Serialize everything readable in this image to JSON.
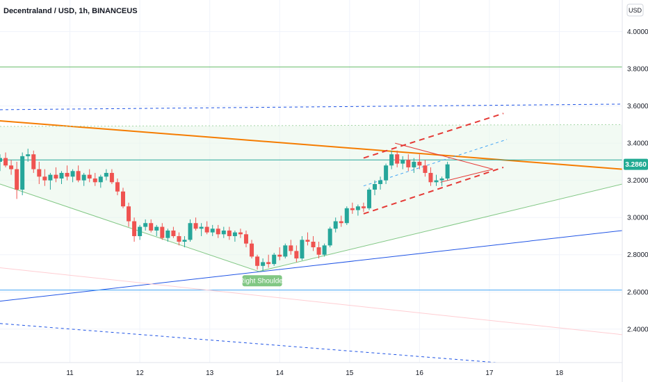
{
  "header": {
    "title": "Decentraland / USD, 1h, BINANCEUS",
    "currency_button": "USD"
  },
  "colors": {
    "up": "#26a69a",
    "down": "#ef5350",
    "orange": "#f57c00",
    "blue": "#1e53e5",
    "green": "#81c784",
    "red_dash": "#e53935",
    "price_tag": "#22ab94"
  },
  "chart_data": {
    "type": "candlestick",
    "title": "Decentraland / USD, 1h, BINANCEUS",
    "x_ticks": [
      "11",
      "12",
      "13",
      "14",
      "15",
      "16",
      "17",
      "18"
    ],
    "x_tick_dates": [
      11,
      12,
      13,
      14,
      15,
      16,
      17,
      18
    ],
    "y_ticks": [
      "4.0000",
      "3.8000",
      "3.6000",
      "3.4000",
      "3.2000",
      "3.0000",
      "2.8000",
      "2.6000",
      "2.4000"
    ],
    "y_tick_values": [
      4.0,
      3.8,
      3.6,
      3.4,
      3.2,
      3.0,
      2.8,
      2.6,
      2.4
    ],
    "ylim": [
      2.22,
      4.17
    ],
    "xlim": [
      10.0,
      18.9
    ],
    "last_price": "3.2860",
    "last_price_value": 3.286,
    "annotation": {
      "text": "Right Shoulder",
      "x": 13.75,
      "y": 2.66
    },
    "candles": [
      [
        10.0,
        3.3,
        3.34,
        3.25,
        3.32
      ],
      [
        10.08,
        3.32,
        3.35,
        3.27,
        3.28
      ],
      [
        10.16,
        3.28,
        3.31,
        3.23,
        3.26
      ],
      [
        10.24,
        3.26,
        3.3,
        3.1,
        3.15
      ],
      [
        10.32,
        3.15,
        3.35,
        3.12,
        3.33
      ],
      [
        10.4,
        3.33,
        3.37,
        3.3,
        3.34
      ],
      [
        10.48,
        3.34,
        3.36,
        3.24,
        3.26
      ],
      [
        10.56,
        3.26,
        3.3,
        3.18,
        3.22
      ],
      [
        10.64,
        3.22,
        3.26,
        3.17,
        3.2
      ],
      [
        10.72,
        3.2,
        3.24,
        3.15,
        3.23
      ],
      [
        10.8,
        3.23,
        3.27,
        3.19,
        3.21
      ],
      [
        10.88,
        3.21,
        3.25,
        3.18,
        3.24
      ],
      [
        10.96,
        3.24,
        3.28,
        3.2,
        3.22
      ],
      [
        11.04,
        3.22,
        3.26,
        3.19,
        3.25
      ],
      [
        11.12,
        3.25,
        3.28,
        3.19,
        3.2
      ],
      [
        11.2,
        3.2,
        3.24,
        3.17,
        3.23
      ],
      [
        11.28,
        3.23,
        3.26,
        3.19,
        3.21
      ],
      [
        11.36,
        3.21,
        3.24,
        3.17,
        3.19
      ],
      [
        11.44,
        3.19,
        3.23,
        3.16,
        3.22
      ],
      [
        11.52,
        3.22,
        3.26,
        3.2,
        3.24
      ],
      [
        11.6,
        3.24,
        3.26,
        3.18,
        3.19
      ],
      [
        11.68,
        3.19,
        3.21,
        3.12,
        3.14
      ],
      [
        11.76,
        3.14,
        3.16,
        3.05,
        3.06
      ],
      [
        11.84,
        3.06,
        3.08,
        2.95,
        2.98
      ],
      [
        11.92,
        2.98,
        3.0,
        2.87,
        2.9
      ],
      [
        12.0,
        2.9,
        2.96,
        2.88,
        2.95
      ],
      [
        12.08,
        2.95,
        2.99,
        2.93,
        2.97
      ],
      [
        12.16,
        2.97,
        2.99,
        2.92,
        2.93
      ],
      [
        12.24,
        2.93,
        2.96,
        2.9,
        2.95
      ],
      [
        12.32,
        2.95,
        2.97,
        2.88,
        2.89
      ],
      [
        12.4,
        2.89,
        2.94,
        2.87,
        2.93
      ],
      [
        12.48,
        2.93,
        2.95,
        2.89,
        2.9
      ],
      [
        12.56,
        2.9,
        2.92,
        2.85,
        2.87
      ],
      [
        12.64,
        2.87,
        2.9,
        2.84,
        2.88
      ],
      [
        12.72,
        2.88,
        2.99,
        2.87,
        2.97
      ],
      [
        12.8,
        2.97,
        3.0,
        2.93,
        2.94
      ],
      [
        12.88,
        2.94,
        2.97,
        2.9,
        2.95
      ],
      [
        12.96,
        2.95,
        2.98,
        2.91,
        2.92
      ],
      [
        13.04,
        2.92,
        2.96,
        2.9,
        2.94
      ],
      [
        13.12,
        2.94,
        2.96,
        2.89,
        2.91
      ],
      [
        13.2,
        2.91,
        2.95,
        2.89,
        2.93
      ],
      [
        13.28,
        2.93,
        2.95,
        2.88,
        2.9
      ],
      [
        13.36,
        2.9,
        2.93,
        2.87,
        2.92
      ],
      [
        13.44,
        2.92,
        2.94,
        2.89,
        2.91
      ],
      [
        13.52,
        2.91,
        2.93,
        2.84,
        2.86
      ],
      [
        13.6,
        2.86,
        2.88,
        2.78,
        2.79
      ],
      [
        13.68,
        2.79,
        2.8,
        2.72,
        2.74
      ],
      [
        13.76,
        2.74,
        2.78,
        2.71,
        2.76
      ],
      [
        13.84,
        2.76,
        2.8,
        2.73,
        2.75
      ],
      [
        13.92,
        2.75,
        2.81,
        2.74,
        2.8
      ],
      [
        14.0,
        2.8,
        2.84,
        2.77,
        2.79
      ],
      [
        14.08,
        2.79,
        2.86,
        2.78,
        2.85
      ],
      [
        14.16,
        2.85,
        2.88,
        2.8,
        2.82
      ],
      [
        14.24,
        2.82,
        2.85,
        2.76,
        2.78
      ],
      [
        14.32,
        2.78,
        2.9,
        2.77,
        2.88
      ],
      [
        14.4,
        2.88,
        2.92,
        2.85,
        2.87
      ],
      [
        14.48,
        2.87,
        2.9,
        2.82,
        2.84
      ],
      [
        14.56,
        2.84,
        2.87,
        2.78,
        2.8
      ],
      [
        14.64,
        2.8,
        2.86,
        2.79,
        2.85
      ],
      [
        14.72,
        2.85,
        2.95,
        2.84,
        2.94
      ],
      [
        14.8,
        2.94,
        3.0,
        2.92,
        2.98
      ],
      [
        14.88,
        2.98,
        3.01,
        2.95,
        2.97
      ],
      [
        14.96,
        2.97,
        3.06,
        2.96,
        3.05
      ],
      [
        15.04,
        3.05,
        3.08,
        3.02,
        3.04
      ],
      [
        15.12,
        3.04,
        3.07,
        3.01,
        3.06
      ],
      [
        15.2,
        3.06,
        3.08,
        3.03,
        3.05
      ],
      [
        15.28,
        3.05,
        3.16,
        3.04,
        3.15
      ],
      [
        15.36,
        3.15,
        3.2,
        3.12,
        3.18
      ],
      [
        15.44,
        3.18,
        3.22,
        3.15,
        3.2
      ],
      [
        15.52,
        3.2,
        3.29,
        3.18,
        3.28
      ],
      [
        15.6,
        3.28,
        3.36,
        3.26,
        3.34
      ],
      [
        15.68,
        3.34,
        3.36,
        3.27,
        3.29
      ],
      [
        15.76,
        3.29,
        3.33,
        3.26,
        3.31
      ],
      [
        15.84,
        3.31,
        3.34,
        3.25,
        3.27
      ],
      [
        15.92,
        3.27,
        3.32,
        3.24,
        3.3
      ],
      [
        16.0,
        3.3,
        3.34,
        3.26,
        3.28
      ],
      [
        16.08,
        3.28,
        3.31,
        3.22,
        3.24
      ],
      [
        16.16,
        3.24,
        3.27,
        3.17,
        3.19
      ],
      [
        16.24,
        3.19,
        3.23,
        3.17,
        3.2
      ],
      [
        16.32,
        3.2,
        3.22,
        3.17,
        3.21
      ],
      [
        16.4,
        3.21,
        3.3,
        3.2,
        3.286
      ]
    ],
    "overlays": [
      {
        "name": "descending-resistance-orange",
        "color": "#f57c00",
        "style": "solid",
        "x1": 10.0,
        "y1": 3.52,
        "x2": 18.9,
        "y2": 3.26
      },
      {
        "name": "ascending-support-blue",
        "color": "#1e53e5",
        "style": "solid",
        "x1": 10.0,
        "y1": 2.55,
        "x2": 18.9,
        "y2": 2.93
      },
      {
        "name": "neckline-green-left",
        "color": "#81c784",
        "style": "solid",
        "x1": 10.0,
        "y1": 3.18,
        "x2": 13.7,
        "y2": 2.71
      },
      {
        "name": "neckline-green-right",
        "color": "#81c784",
        "style": "solid",
        "x1": 13.7,
        "y1": 2.71,
        "x2": 18.9,
        "y2": 3.18
      },
      {
        "name": "horizontal-green-top",
        "color": "#66bb6a",
        "style": "solid",
        "x1": 10.0,
        "y1": 3.81,
        "x2": 18.9,
        "y2": 3.81
      },
      {
        "name": "horizontal-teal-mid",
        "color": "#26a69a",
        "style": "solid",
        "x1": 10.0,
        "y1": 3.31,
        "x2": 18.9,
        "y2": 3.31
      },
      {
        "name": "horizontal-blue-bottom",
        "color": "#42a5f5",
        "style": "solid",
        "x1": 10.0,
        "y1": 2.61,
        "x2": 18.9,
        "y2": 2.61
      },
      {
        "name": "blue-dashed-top",
        "color": "#1e53e5",
        "style": "dashed",
        "x1": 10.0,
        "y1": 3.58,
        "x2": 18.9,
        "y2": 3.61
      },
      {
        "name": "blue-dashed-bottom",
        "color": "#1e53e5",
        "style": "dashed",
        "x1": 10.0,
        "y1": 2.43,
        "x2": 17.1,
        "y2": 2.22
      },
      {
        "name": "green-dotted-top",
        "color": "#a5d6a7",
        "style": "dotted",
        "x1": 10.0,
        "y1": 3.49,
        "x2": 18.9,
        "y2": 3.5
      },
      {
        "name": "red-channel-top",
        "color": "#e53935",
        "style": "dashed",
        "x1": 15.2,
        "y1": 3.32,
        "x2": 17.2,
        "y2": 3.56
      },
      {
        "name": "red-channel-bottom",
        "color": "#e53935",
        "style": "dashed",
        "x1": 15.2,
        "y1": 3.02,
        "x2": 17.2,
        "y2": 3.27
      },
      {
        "name": "blue-channel-mid",
        "color": "#42a5f5",
        "style": "dashed",
        "x1": 15.2,
        "y1": 3.17,
        "x2": 17.25,
        "y2": 3.42
      },
      {
        "name": "wedge-top",
        "color": "#e53935",
        "style": "solid",
        "x1": 15.65,
        "y1": 3.4,
        "x2": 17.05,
        "y2": 3.26
      },
      {
        "name": "wedge-bottom",
        "color": "#e53935",
        "style": "solid",
        "x1": 16.3,
        "y1": 3.19,
        "x2": 17.05,
        "y2": 3.26
      },
      {
        "name": "faint-red-line",
        "color": "#ffcdd2",
        "style": "solid",
        "x1": 10.0,
        "y1": 2.73,
        "x2": 18.9,
        "y2": 2.37
      }
    ]
  }
}
